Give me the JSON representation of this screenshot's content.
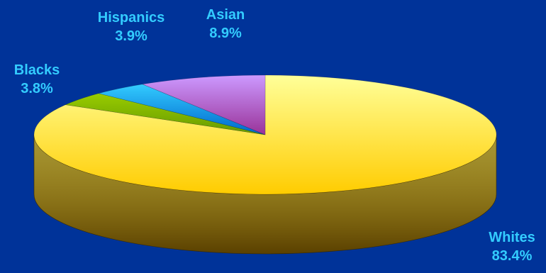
{
  "chart_data": {
    "type": "pie",
    "style": "3d",
    "background_color": "#003399",
    "label_color": "#33ccff",
    "legend": "none",
    "slices": [
      {
        "name": "Whites",
        "value": 83.4,
        "label": "83.4%",
        "color": "#ffcc00",
        "highlight": "#ffff99"
      },
      {
        "name": "Blacks",
        "value": 3.8,
        "label": "3.8%",
        "color": "#669900",
        "highlight": "#99cc00"
      },
      {
        "name": "Hispanics",
        "value": 3.9,
        "label": "3.9%",
        "color": "#0066cc",
        "highlight": "#33ccff"
      },
      {
        "name": "Asian",
        "value": 8.9,
        "label": "8.9%",
        "color": "#993399",
        "highlight": "#cc99ff"
      }
    ]
  }
}
